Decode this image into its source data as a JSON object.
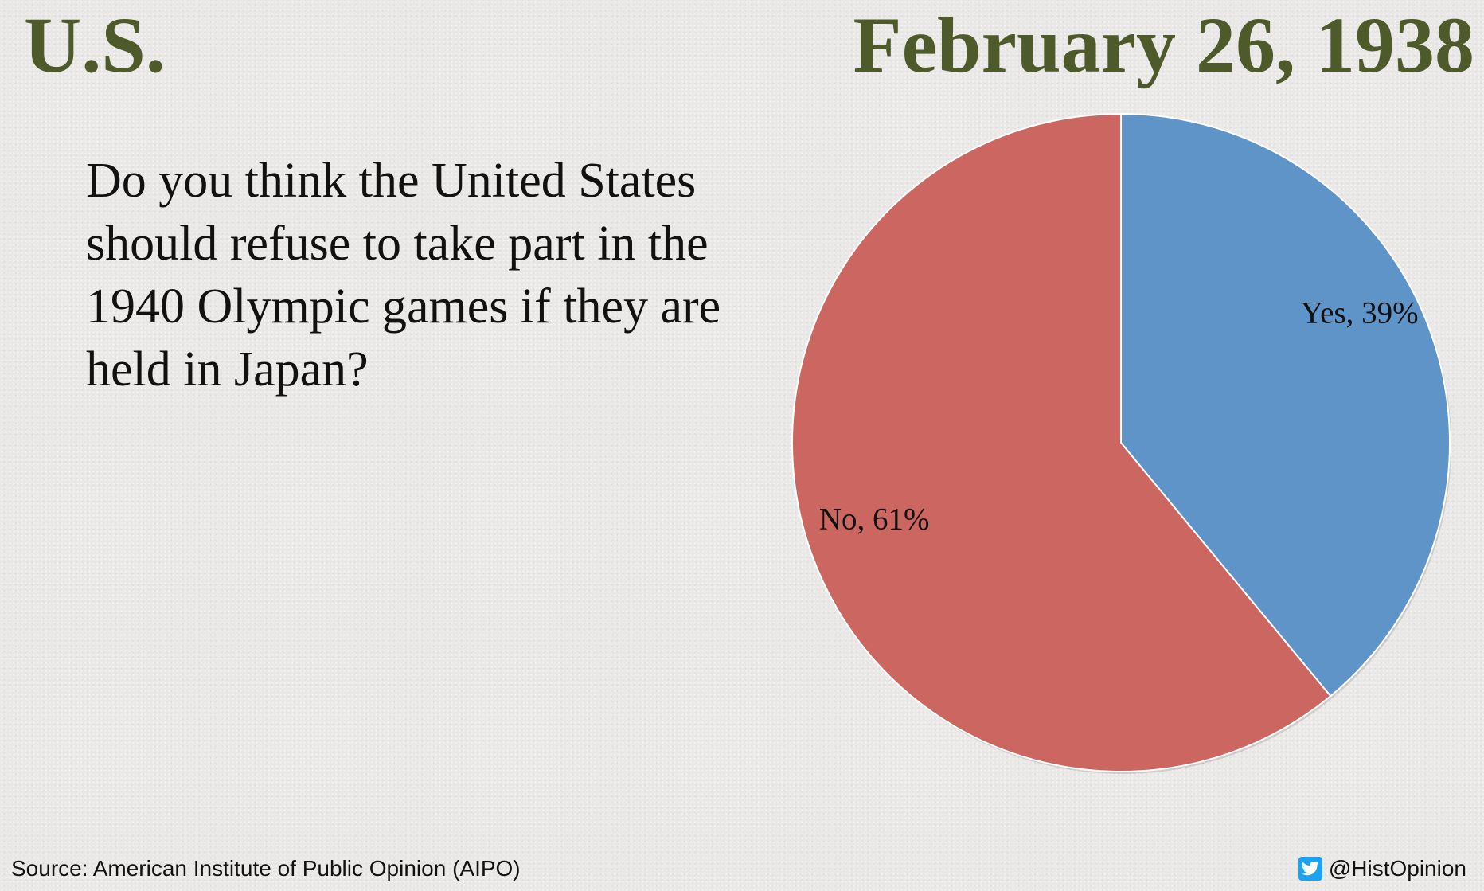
{
  "header": {
    "country": "U.S.",
    "date": "February 26, 1938"
  },
  "question": "Do you think the United States should refuse to take part in the 1940 Olympic games if they are held in Japan?",
  "chart_data": {
    "type": "pie",
    "slices": [
      {
        "label": "Yes",
        "value": 39,
        "color": "#5f94c8",
        "display": "Yes, 39%"
      },
      {
        "label": "No",
        "value": 61,
        "color": "#cc6660",
        "display": "No, 61%"
      }
    ],
    "start": "12 o'clock",
    "direction": "clockwise"
  },
  "footer": {
    "source": "Source: American Institute of Public Opinion (AIPO)",
    "handle": "@HistOpinion",
    "icon": "twitter-icon"
  }
}
